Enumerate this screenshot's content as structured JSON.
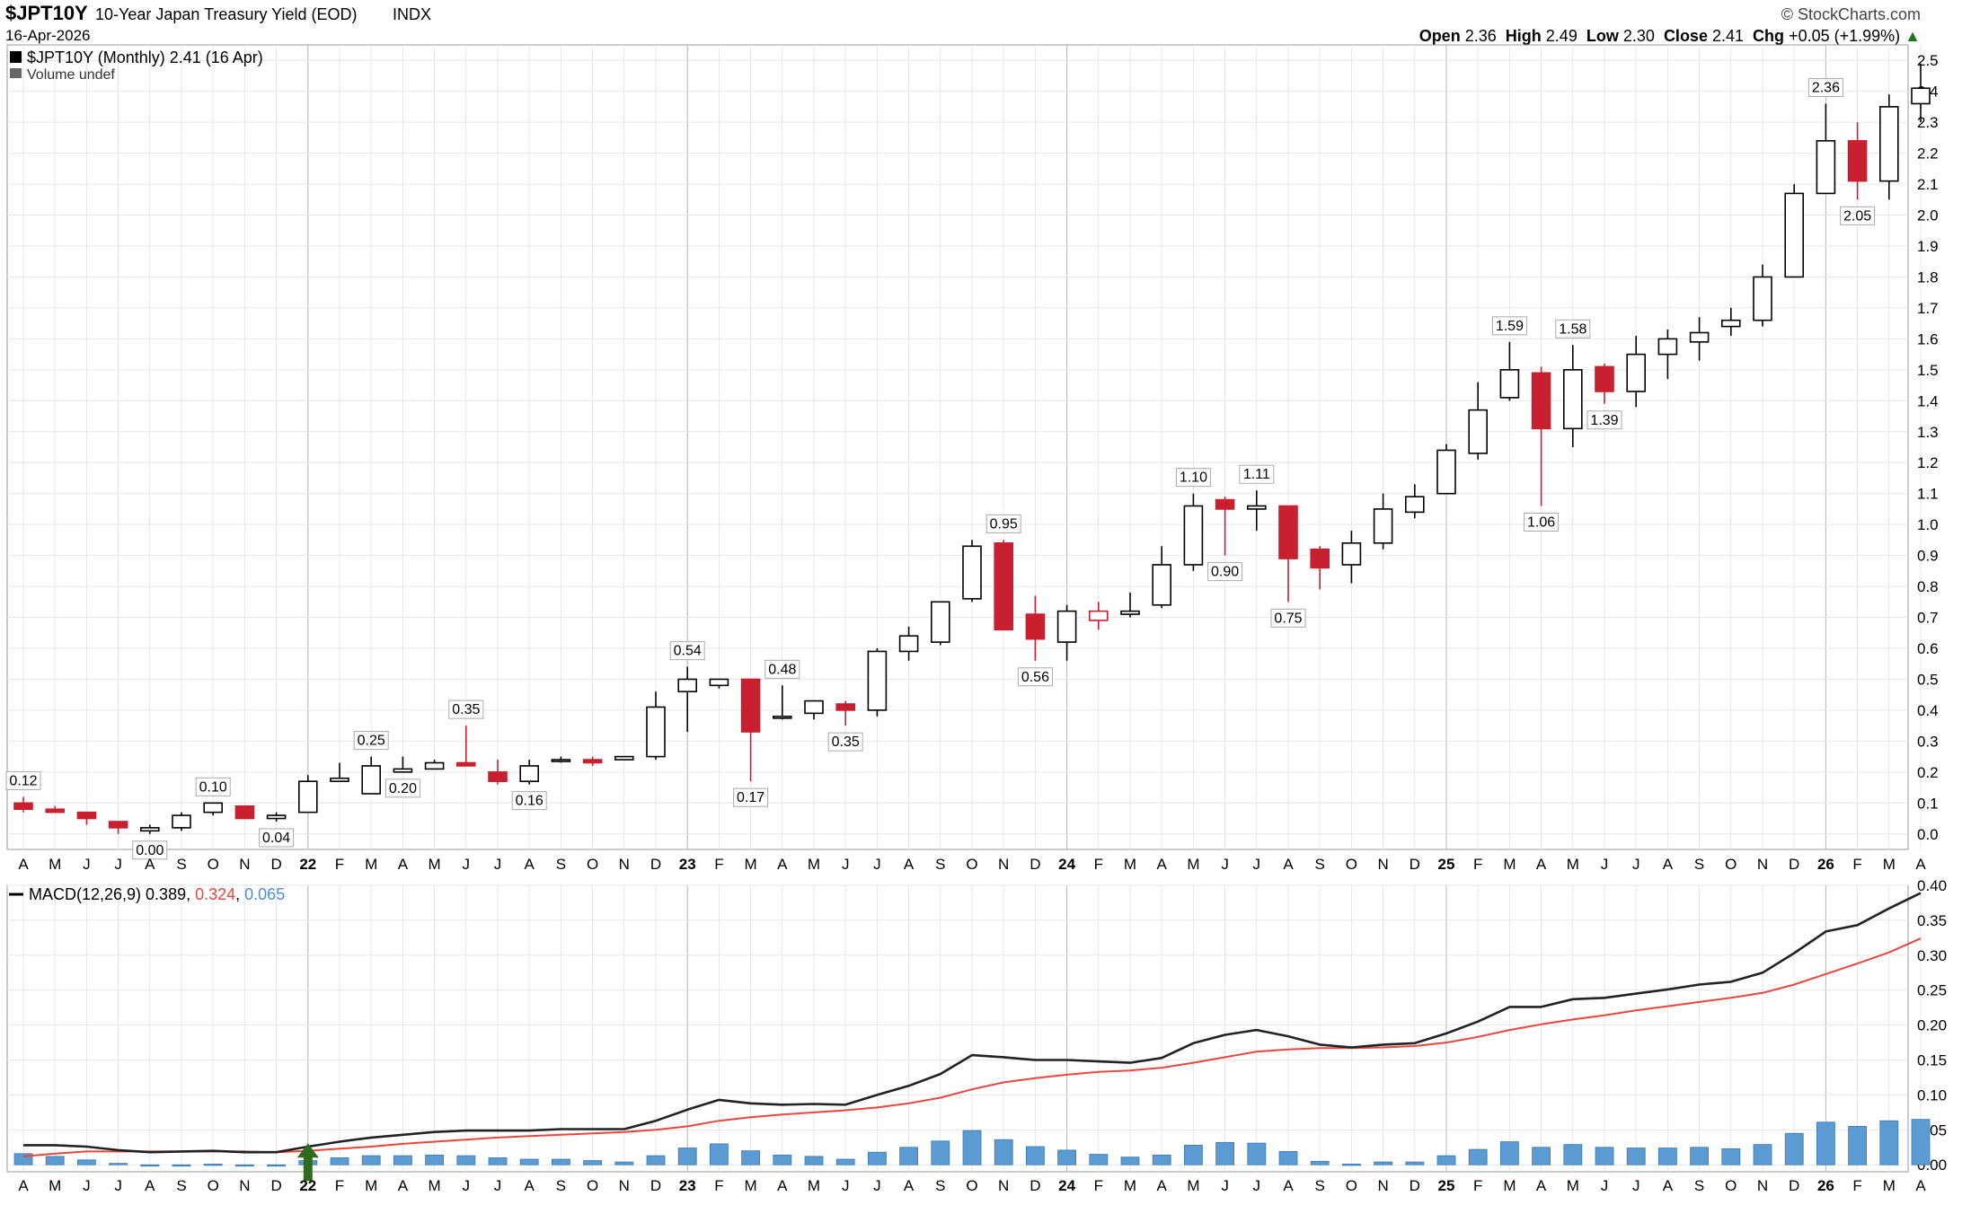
{
  "header": {
    "symbol": "$JPT10Y",
    "name": "10-Year Japan Treasury Yield (EOD)",
    "exchange": "INDX",
    "brand": "© StockCharts.com",
    "date": "16-Apr-2026",
    "open_label": "Open",
    "open": "2.36",
    "high_label": "High",
    "high": "2.49",
    "low_label": "Low",
    "low": "2.30",
    "close_label": "Close",
    "close": "2.41",
    "chg_label": "Chg",
    "chg": "+0.05 (+1.99%)",
    "chg_arrow": "▲"
  },
  "legend": {
    "price": "$JPT10Y (Monthly) 2.41 (16 Apr)",
    "volume": "Volume undef",
    "macd_name": "MACD(12,26,9)",
    "macd_value": "0.389",
    "signal_value": "0.324",
    "hist_value": "0.065"
  },
  "colors": {
    "up": "#000000",
    "down": "#c8202f",
    "grid": "#e6e6e6",
    "macd": "#222222",
    "signal": "#e8483c",
    "hist": "#5a9bd4",
    "signal_text": "#e8483c",
    "hist_text": "#4a8fd0",
    "arrow": "#2e6b1f"
  },
  "chart_data": [
    {
      "type": "candlestick",
      "title": "$JPT10Y (Monthly) 2.41 (16 Apr)",
      "ylim": [
        -0.05,
        2.55
      ],
      "yticks": [
        0.0,
        0.1,
        0.2,
        0.3,
        0.4,
        0.5,
        0.6,
        0.7,
        0.8,
        0.9,
        1.0,
        1.1,
        1.2,
        1.3,
        1.4,
        1.5,
        1.6,
        1.7,
        1.8,
        1.9,
        2.0,
        2.1,
        2.2,
        2.3,
        2.4,
        2.5
      ],
      "ytick_labels": [
        "0.0",
        "0.1",
        "0.2",
        "0.3",
        "0.4",
        "0.5",
        "0.6",
        "0.7",
        "0.8",
        "0.9",
        "1.0",
        "1.1",
        "1.2",
        "1.3",
        "1.4",
        "1.5",
        "1.6",
        "1.7",
        "1.8",
        "1.9",
        "2.0",
        "2.1",
        "2.2",
        "2.3",
        "2.4",
        "2.5"
      ],
      "x_labels": [
        "A",
        "M",
        "J",
        "J",
        "A",
        "S",
        "O",
        "N",
        "D",
        "22",
        "F",
        "M",
        "A",
        "M",
        "J",
        "J",
        "A",
        "S",
        "O",
        "N",
        "D",
        "23",
        "F",
        "M",
        "A",
        "M",
        "J",
        "J",
        "A",
        "S",
        "O",
        "N",
        "D",
        "24",
        "F",
        "M",
        "A",
        "M",
        "J",
        "J",
        "A",
        "S",
        "O",
        "N",
        "D",
        "25",
        "F",
        "M",
        "A",
        "M",
        "J",
        "J",
        "A",
        "S",
        "O",
        "N",
        "D",
        "26",
        "F",
        "M",
        "A"
      ],
      "year_labels": [
        "22",
        "23",
        "24",
        "25",
        "26"
      ],
      "candles": [
        {
          "o": 0.1,
          "h": 0.12,
          "l": 0.07,
          "c": 0.08,
          "color": "down"
        },
        {
          "o": 0.08,
          "h": 0.09,
          "l": 0.07,
          "c": 0.07,
          "color": "down"
        },
        {
          "o": 0.07,
          "h": 0.07,
          "l": 0.03,
          "c": 0.05,
          "color": "down"
        },
        {
          "o": 0.04,
          "h": 0.04,
          "l": 0.0,
          "c": 0.02,
          "color": "down"
        },
        {
          "o": 0.01,
          "h": 0.03,
          "l": 0.0,
          "c": 0.02,
          "color": "up"
        },
        {
          "o": 0.02,
          "h": 0.07,
          "l": 0.01,
          "c": 0.06,
          "color": "up"
        },
        {
          "o": 0.07,
          "h": 0.1,
          "l": 0.06,
          "c": 0.1,
          "color": "up"
        },
        {
          "o": 0.09,
          "h": 0.09,
          "l": 0.05,
          "c": 0.05,
          "color": "down"
        },
        {
          "o": 0.06,
          "h": 0.07,
          "l": 0.04,
          "c": 0.05,
          "color": "up"
        },
        {
          "o": 0.07,
          "h": 0.19,
          "l": 0.07,
          "c": 0.17,
          "color": "up"
        },
        {
          "o": 0.17,
          "h": 0.23,
          "l": 0.17,
          "c": 0.18,
          "color": "up"
        },
        {
          "o": 0.13,
          "h": 0.25,
          "l": 0.13,
          "c": 0.22,
          "color": "up"
        },
        {
          "o": 0.2,
          "h": 0.25,
          "l": 0.2,
          "c": 0.21,
          "color": "up"
        },
        {
          "o": 0.21,
          "h": 0.24,
          "l": 0.21,
          "c": 0.23,
          "color": "up"
        },
        {
          "o": 0.23,
          "h": 0.35,
          "l": 0.22,
          "c": 0.22,
          "color": "down"
        },
        {
          "o": 0.2,
          "h": 0.24,
          "l": 0.16,
          "c": 0.17,
          "color": "down"
        },
        {
          "o": 0.17,
          "h": 0.24,
          "l": 0.16,
          "c": 0.22,
          "color": "up"
        },
        {
          "o": 0.24,
          "h": 0.25,
          "l": 0.23,
          "c": 0.24,
          "color": "up"
        },
        {
          "o": 0.24,
          "h": 0.25,
          "l": 0.22,
          "c": 0.23,
          "color": "down"
        },
        {
          "o": 0.24,
          "h": 0.25,
          "l": 0.24,
          "c": 0.25,
          "color": "up"
        },
        {
          "o": 0.25,
          "h": 0.46,
          "l": 0.24,
          "c": 0.41,
          "color": "up"
        },
        {
          "o": 0.46,
          "h": 0.54,
          "l": 0.33,
          "c": 0.5,
          "color": "up"
        },
        {
          "o": 0.48,
          "h": 0.5,
          "l": 0.47,
          "c": 0.5,
          "color": "up"
        },
        {
          "o": 0.5,
          "h": 0.5,
          "l": 0.17,
          "c": 0.33,
          "color": "down"
        },
        {
          "o": 0.38,
          "h": 0.48,
          "l": 0.37,
          "c": 0.38,
          "color": "up"
        },
        {
          "o": 0.39,
          "h": 0.43,
          "l": 0.37,
          "c": 0.43,
          "color": "up"
        },
        {
          "o": 0.42,
          "h": 0.43,
          "l": 0.35,
          "c": 0.4,
          "color": "down"
        },
        {
          "o": 0.4,
          "h": 0.6,
          "l": 0.38,
          "c": 0.59,
          "color": "up"
        },
        {
          "o": 0.59,
          "h": 0.67,
          "l": 0.56,
          "c": 0.64,
          "color": "up"
        },
        {
          "o": 0.62,
          "h": 0.75,
          "l": 0.61,
          "c": 0.75,
          "color": "up"
        },
        {
          "o": 0.76,
          "h": 0.95,
          "l": 0.75,
          "c": 0.93,
          "color": "up"
        },
        {
          "o": 0.94,
          "h": 0.95,
          "l": 0.66,
          "c": 0.66,
          "color": "down"
        },
        {
          "o": 0.71,
          "h": 0.77,
          "l": 0.56,
          "c": 0.63,
          "color": "down"
        },
        {
          "o": 0.62,
          "h": 0.74,
          "l": 0.56,
          "c": 0.72,
          "color": "up"
        },
        {
          "o": 0.72,
          "h": 0.75,
          "l": 0.66,
          "c": 0.69,
          "color": "up_hollow_red"
        },
        {
          "o": 0.71,
          "h": 0.78,
          "l": 0.7,
          "c": 0.72,
          "color": "up"
        },
        {
          "o": 0.74,
          "h": 0.93,
          "l": 0.73,
          "c": 0.87,
          "color": "up"
        },
        {
          "o": 0.87,
          "h": 1.1,
          "l": 0.85,
          "c": 1.06,
          "color": "up"
        },
        {
          "o": 1.08,
          "h": 1.09,
          "l": 0.9,
          "c": 1.05,
          "color": "down"
        },
        {
          "o": 1.05,
          "h": 1.11,
          "l": 0.98,
          "c": 1.06,
          "color": "up"
        },
        {
          "o": 1.06,
          "h": 1.06,
          "l": 0.75,
          "c": 0.89,
          "color": "down"
        },
        {
          "o": 0.92,
          "h": 0.93,
          "l": 0.79,
          "c": 0.86,
          "color": "down"
        },
        {
          "o": 0.87,
          "h": 0.98,
          "l": 0.81,
          "c": 0.94,
          "color": "up"
        },
        {
          "o": 0.94,
          "h": 1.1,
          "l": 0.92,
          "c": 1.05,
          "color": "up"
        },
        {
          "o": 1.04,
          "h": 1.13,
          "l": 1.02,
          "c": 1.09,
          "color": "up"
        },
        {
          "o": 1.1,
          "h": 1.26,
          "l": 1.1,
          "c": 1.24,
          "color": "up"
        },
        {
          "o": 1.23,
          "h": 1.46,
          "l": 1.21,
          "c": 1.37,
          "color": "up"
        },
        {
          "o": 1.41,
          "h": 1.59,
          "l": 1.4,
          "c": 1.5,
          "color": "up"
        },
        {
          "o": 1.49,
          "h": 1.51,
          "l": 1.06,
          "c": 1.31,
          "color": "down"
        },
        {
          "o": 1.31,
          "h": 1.58,
          "l": 1.25,
          "c": 1.5,
          "color": "up"
        },
        {
          "o": 1.51,
          "h": 1.52,
          "l": 1.39,
          "c": 1.43,
          "color": "down"
        },
        {
          "o": 1.43,
          "h": 1.61,
          "l": 1.38,
          "c": 1.55,
          "color": "up"
        },
        {
          "o": 1.55,
          "h": 1.63,
          "l": 1.47,
          "c": 1.6,
          "color": "up"
        },
        {
          "o": 1.59,
          "h": 1.67,
          "l": 1.53,
          "c": 1.62,
          "color": "up"
        },
        {
          "o": 1.64,
          "h": 1.7,
          "l": 1.61,
          "c": 1.66,
          "color": "up"
        },
        {
          "o": 1.66,
          "h": 1.84,
          "l": 1.64,
          "c": 1.8,
          "color": "up"
        },
        {
          "o": 1.8,
          "h": 2.1,
          "l": 1.8,
          "c": 2.07,
          "color": "up"
        },
        {
          "o": 2.07,
          "h": 2.36,
          "l": 2.07,
          "c": 2.24,
          "color": "up"
        },
        {
          "o": 2.24,
          "h": 2.3,
          "l": 2.05,
          "c": 2.11,
          "color": "down"
        },
        {
          "o": 2.11,
          "h": 2.39,
          "l": 2.05,
          "c": 2.35,
          "color": "up"
        },
        {
          "o": 2.36,
          "h": 2.49,
          "l": 2.3,
          "c": 2.41,
          "color": "up"
        }
      ],
      "annotations": [
        {
          "i": 0,
          "v": 0.12,
          "label": "0.12",
          "pos": "above"
        },
        {
          "i": 4,
          "v": 0.0,
          "label": "0.00",
          "pos": "below"
        },
        {
          "i": 6,
          "v": 0.1,
          "label": "0.10",
          "pos": "above"
        },
        {
          "i": 8,
          "v": 0.04,
          "label": "0.04",
          "pos": "below"
        },
        {
          "i": 11,
          "v": 0.25,
          "label": "0.25",
          "pos": "above"
        },
        {
          "i": 12,
          "v": 0.2,
          "label": "0.20",
          "pos": "below"
        },
        {
          "i": 14,
          "v": 0.35,
          "label": "0.35",
          "pos": "above"
        },
        {
          "i": 16,
          "v": 0.16,
          "label": "0.16",
          "pos": "below"
        },
        {
          "i": 21,
          "v": 0.54,
          "label": "0.54",
          "pos": "above"
        },
        {
          "i": 23,
          "v": 0.17,
          "label": "0.17",
          "pos": "below"
        },
        {
          "i": 24,
          "v": 0.48,
          "label": "0.48",
          "pos": "above"
        },
        {
          "i": 26,
          "v": 0.35,
          "label": "0.35",
          "pos": "below"
        },
        {
          "i": 31,
          "v": 0.95,
          "label": "0.95",
          "pos": "above"
        },
        {
          "i": 32,
          "v": 0.56,
          "label": "0.56",
          "pos": "below"
        },
        {
          "i": 37,
          "v": 1.1,
          "label": "1.10",
          "pos": "above"
        },
        {
          "i": 38,
          "v": 0.9,
          "label": "0.90",
          "pos": "below"
        },
        {
          "i": 39,
          "v": 1.11,
          "label": "1.11",
          "pos": "above"
        },
        {
          "i": 40,
          "v": 0.75,
          "label": "0.75",
          "pos": "below"
        },
        {
          "i": 47,
          "v": 1.59,
          "label": "1.59",
          "pos": "above"
        },
        {
          "i": 48,
          "v": 1.06,
          "label": "1.06",
          "pos": "below"
        },
        {
          "i": 49,
          "v": 1.58,
          "label": "1.58",
          "pos": "above"
        },
        {
          "i": 50,
          "v": 1.39,
          "label": "1.39",
          "pos": "below"
        },
        {
          "i": 57,
          "v": 2.36,
          "label": "2.36",
          "pos": "above"
        },
        {
          "i": 58,
          "v": 2.05,
          "label": "2.05",
          "pos": "below"
        }
      ]
    },
    {
      "type": "line",
      "title": "MACD(12,26,9) 0.389, 0.324, 0.065",
      "ylim": [
        -0.01,
        0.4
      ],
      "yticks": [
        0.0,
        0.05,
        0.1,
        0.15,
        0.2,
        0.25,
        0.3,
        0.35,
        0.4
      ],
      "ytick_labels": [
        "0.00",
        "0.05",
        "0.10",
        "0.15",
        "0.20",
        "0.25",
        "0.30",
        "0.35",
        "0.40"
      ],
      "series": [
        {
          "name": "MACD",
          "values": [
            0.028,
            0.028,
            0.026,
            0.021,
            0.018,
            0.019,
            0.02,
            0.018,
            0.018,
            0.026,
            0.033,
            0.039,
            0.043,
            0.047,
            0.049,
            0.049,
            0.049,
            0.051,
            0.051,
            0.051,
            0.063,
            0.079,
            0.093,
            0.088,
            0.086,
            0.087,
            0.086,
            0.1,
            0.113,
            0.13,
            0.157,
            0.154,
            0.15,
            0.15,
            0.148,
            0.146,
            0.153,
            0.174,
            0.186,
            0.193,
            0.184,
            0.172,
            0.168,
            0.172,
            0.174,
            0.188,
            0.205,
            0.226,
            0.226,
            0.237,
            0.239,
            0.245,
            0.251,
            0.258,
            0.262,
            0.275,
            0.303,
            0.334,
            0.343,
            0.367,
            0.389
          ]
        },
        {
          "name": "Signal",
          "values": [
            0.012,
            0.016,
            0.019,
            0.019,
            0.019,
            0.019,
            0.019,
            0.019,
            0.018,
            0.02,
            0.023,
            0.026,
            0.03,
            0.033,
            0.036,
            0.039,
            0.041,
            0.043,
            0.045,
            0.047,
            0.05,
            0.055,
            0.063,
            0.068,
            0.072,
            0.075,
            0.078,
            0.082,
            0.088,
            0.096,
            0.108,
            0.118,
            0.124,
            0.129,
            0.133,
            0.135,
            0.139,
            0.146,
            0.154,
            0.162,
            0.165,
            0.167,
            0.167,
            0.168,
            0.17,
            0.175,
            0.183,
            0.193,
            0.201,
            0.208,
            0.214,
            0.221,
            0.227,
            0.233,
            0.239,
            0.246,
            0.258,
            0.273,
            0.288,
            0.304,
            0.324
          ]
        },
        {
          "name": "Histogram",
          "values": [
            0.016,
            0.012,
            0.007,
            0.002,
            -0.001,
            0.0,
            0.001,
            -0.001,
            0.0,
            0.006,
            0.01,
            0.013,
            0.013,
            0.014,
            0.013,
            0.01,
            0.008,
            0.008,
            0.006,
            0.004,
            0.013,
            0.024,
            0.03,
            0.02,
            0.014,
            0.012,
            0.008,
            0.018,
            0.025,
            0.034,
            0.049,
            0.036,
            0.026,
            0.021,
            0.015,
            0.011,
            0.014,
            0.028,
            0.032,
            0.031,
            0.019,
            0.005,
            0.001,
            0.004,
            0.004,
            0.013,
            0.022,
            0.033,
            0.025,
            0.029,
            0.025,
            0.024,
            0.024,
            0.025,
            0.023,
            0.029,
            0.045,
            0.061,
            0.055,
            0.063,
            0.065
          ]
        }
      ],
      "marker": {
        "i": 9,
        "kind": "crossover-up-arrow"
      }
    }
  ]
}
